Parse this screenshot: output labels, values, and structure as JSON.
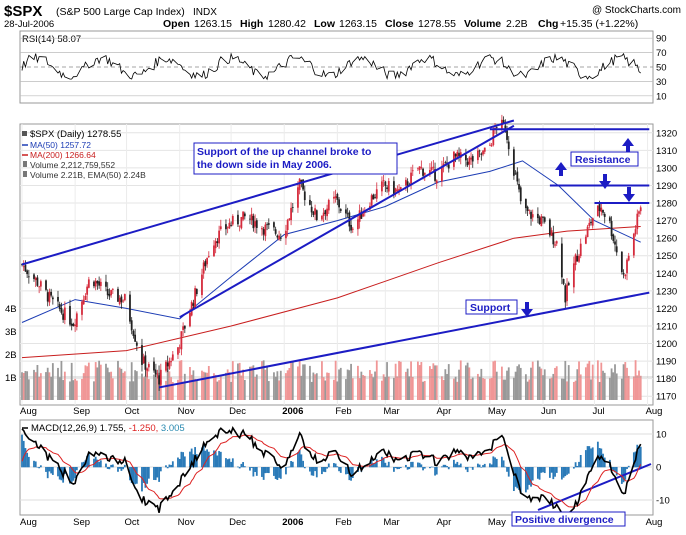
{
  "header": {
    "symbol": "$SPX",
    "name": "(S&P 500 Large Cap Index)",
    "exchange": "INDX",
    "watermark": "@ StockCharts.com",
    "date": "28-Jul-2006",
    "open_label": "Open",
    "open": "1263.15",
    "high_label": "High",
    "high": "1280.42",
    "low_label": "Low",
    "low": "1263.15",
    "close_label": "Close",
    "close": "1278.55",
    "volume_label": "Volume",
    "volume": "2.2B",
    "chg_label": "Chg",
    "chg": "+15.35 (+1.22%)"
  },
  "rsi": {
    "label": "RSI(14)",
    "value": "58.07",
    "ticks": [
      "90",
      "70",
      "50",
      "30",
      "10"
    ]
  },
  "price_legend": {
    "daily": "$SPX (Daily) 1278.55",
    "ma50": "MA(50) 1257.72",
    "ma200": "MA(200) 1266.64",
    "volume": "Volume 2,212,759,552",
    "ema": "Volume 2.21B, EMA(50) 2.24B"
  },
  "annotations": {
    "support_break": "Support of the up channel broke to the down side in May 2006.",
    "resistance": "Resistance",
    "support": "Support",
    "divergence": "Positive divergence"
  },
  "volume_ticks": [
    "4B",
    "3B",
    "2B",
    "1B"
  ],
  "macd": {
    "label": "MACD(12,26,9)",
    "v1": "1.755,",
    "v2": "-1.250,",
    "v3": "3.005",
    "ticks": [
      "10",
      "0",
      "-10"
    ]
  },
  "colors": {
    "up": "#d52b3c",
    "down": "#222222",
    "line_blue": "#1c1cc4",
    "ma50": "#1c3cb4",
    "ma200": "#c81e1e",
    "vol_up": "#f09696",
    "vol_down": "#999999"
  },
  "chart_data": {
    "type": "candlestick",
    "title": "$SPX (S&P 500 Large Cap Index) INDX",
    "x_labels": [
      "Aug",
      "Sep",
      "Oct",
      "Nov",
      "Dec",
      "2006",
      "Feb",
      "Mar",
      "Apr",
      "May",
      "Jun",
      "Jul",
      "Aug"
    ],
    "y_ticks": [
      1320,
      1310,
      1300,
      1290,
      1280,
      1270,
      1260,
      1250,
      1240,
      1230,
      1220,
      1210,
      1200,
      1190,
      1180,
      1170
    ],
    "ylim": [
      1165,
      1325
    ],
    "price_path": [
      [
        "2005-08-01",
        1245
      ],
      [
        "2005-08-10",
        1235
      ],
      [
        "2005-08-20",
        1222
      ],
      [
        "2005-08-31",
        1212
      ],
      [
        "2005-09-10",
        1238
      ],
      [
        "2005-09-20",
        1228
      ],
      [
        "2005-09-30",
        1225
      ],
      [
        "2005-10-10",
        1190
      ],
      [
        "2005-10-20",
        1180
      ],
      [
        "2005-10-31",
        1198
      ],
      [
        "2005-11-10",
        1228
      ],
      [
        "2005-11-20",
        1258
      ],
      [
        "2005-11-30",
        1268
      ],
      [
        "2005-12-10",
        1272
      ],
      [
        "2005-12-20",
        1266
      ],
      [
        "2005-12-31",
        1262
      ],
      [
        "2006-01-10",
        1290
      ],
      [
        "2006-01-20",
        1272
      ],
      [
        "2006-01-31",
        1282
      ],
      [
        "2006-02-10",
        1266
      ],
      [
        "2006-02-20",
        1282
      ],
      [
        "2006-02-28",
        1290
      ],
      [
        "2006-03-10",
        1286
      ],
      [
        "2006-03-20",
        1300
      ],
      [
        "2006-03-31",
        1296
      ],
      [
        "2006-04-10",
        1306
      ],
      [
        "2006-04-20",
        1304
      ],
      [
        "2006-04-30",
        1310
      ],
      [
        "2006-05-05",
        1325
      ],
      [
        "2006-05-10",
        1323
      ],
      [
        "2006-05-20",
        1276
      ],
      [
        "2006-05-31",
        1270
      ],
      [
        "2006-06-10",
        1256
      ],
      [
        "2006-06-14",
        1226
      ],
      [
        "2006-06-20",
        1248
      ],
      [
        "2006-06-30",
        1272
      ],
      [
        "2006-07-05",
        1278
      ],
      [
        "2006-07-10",
        1268
      ],
      [
        "2006-07-18",
        1238
      ],
      [
        "2006-07-28",
        1278.55
      ]
    ],
    "ma50": [
      [
        "2005-08-01",
        1212
      ],
      [
        "2005-09-01",
        1225
      ],
      [
        "2005-10-01",
        1220
      ],
      [
        "2005-11-01",
        1214
      ],
      [
        "2005-12-01",
        1238
      ],
      [
        "2006-01-01",
        1262
      ],
      [
        "2006-02-01",
        1270
      ],
      [
        "2006-03-01",
        1278
      ],
      [
        "2006-04-01",
        1292
      ],
      [
        "2006-05-01",
        1298
      ],
      [
        "2006-05-20",
        1304
      ],
      [
        "2006-06-10",
        1290
      ],
      [
        "2006-07-01",
        1270
      ],
      [
        "2006-07-28",
        1257.72
      ]
    ],
    "ma200": [
      [
        "2005-08-01",
        1192
      ],
      [
        "2005-10-01",
        1196
      ],
      [
        "2005-12-01",
        1210
      ],
      [
        "2006-02-01",
        1226
      ],
      [
        "2006-04-01",
        1246
      ],
      [
        "2006-05-15",
        1260
      ],
      [
        "2006-06-15",
        1264
      ],
      [
        "2006-07-28",
        1266.64
      ]
    ],
    "trendlines": [
      {
        "name": "upper channel",
        "from": [
          "2005-08-01",
          1245
        ],
        "to": [
          "2006-05-15",
          1327
        ]
      },
      {
        "name": "lower channel",
        "from": [
          "2005-11-01",
          1215
        ],
        "to": [
          "2006-05-15",
          1324
        ]
      },
      {
        "name": "support",
        "from": [
          "2005-10-20",
          1175
        ],
        "to": [
          "2006-08-02",
          1229
        ]
      },
      {
        "name": "resistance",
        "from": [
          "2006-05-01",
          1322
        ],
        "to": [
          "2006-08-02",
          1322
        ]
      },
      {
        "name": "resistance 1290",
        "from": [
          "2006-06-05",
          1290
        ],
        "to": [
          "2006-08-02",
          1290
        ]
      },
      {
        "name": "resistance 1280",
        "from": [
          "2006-07-01",
          1280
        ],
        "to": [
          "2006-08-02",
          1280
        ]
      }
    ],
    "volume_ticks": [
      "4B",
      "3B",
      "2B",
      "1B"
    ],
    "rsi_range": [
      0,
      100
    ],
    "macd_range": [
      -15,
      14
    ]
  }
}
